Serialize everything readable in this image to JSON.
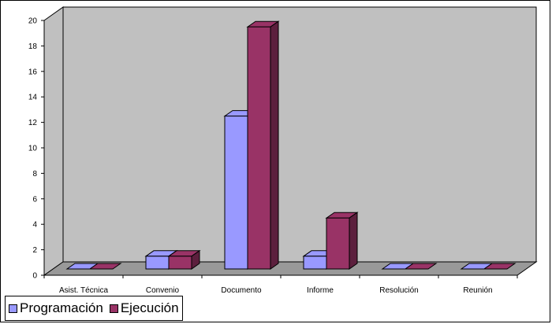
{
  "chart_data": {
    "type": "bar",
    "style": "3d-clustered-column",
    "categories": [
      "Asist. Técnica",
      "Convenio",
      "Documento",
      "Informe",
      "Resolución",
      "Reunión"
    ],
    "series": [
      {
        "name": "Programación",
        "values": [
          0,
          1,
          12,
          1,
          0,
          0
        ],
        "color": "#9999ff"
      },
      {
        "name": "Ejecución",
        "values": [
          0,
          1,
          19,
          4,
          0,
          0
        ],
        "color": "#993366"
      }
    ],
    "ylim": [
      0,
      20
    ],
    "yticks": [
      "0",
      "2",
      "4",
      "6",
      "8",
      "10",
      "12",
      "14",
      "16",
      "18",
      "20"
    ],
    "title": "",
    "xlabel": "",
    "ylabel": "",
    "grid": false,
    "legend_position": "bottom-left",
    "wall_color": "#c0c0c0"
  }
}
